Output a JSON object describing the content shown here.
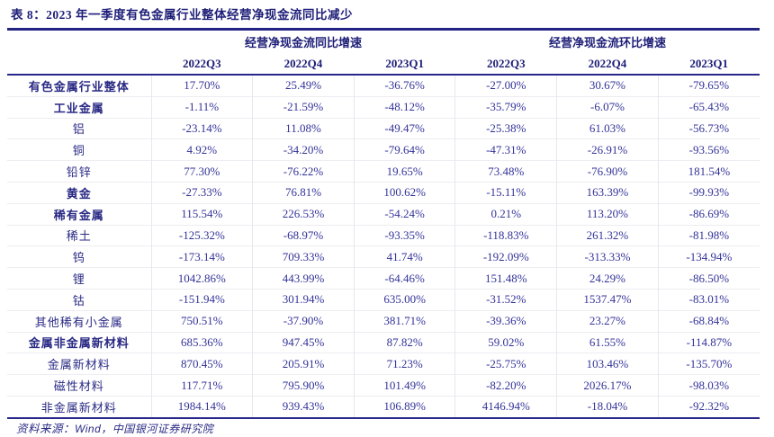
{
  "title": "表 8：2023 年一季度有色金属行业整体经营净现金流同比减少",
  "colors": {
    "accent_navy": "#232384",
    "value_text": "#333399",
    "grid_light": "#ededf2",
    "background": "#ffffff"
  },
  "table": {
    "group_headers": [
      "经营净现金流同比增速",
      "经营净现金流环比增速"
    ],
    "quarter_headers": [
      "2022Q3",
      "2022Q4",
      "2023Q1",
      "2022Q3",
      "2022Q4",
      "2023Q1"
    ],
    "rows": [
      {
        "label": "有色金属行业整体",
        "bold": true,
        "values": [
          "17.70%",
          "25.49%",
          "-36.76%",
          "-27.00%",
          "30.67%",
          "-79.65%"
        ]
      },
      {
        "label": "工业金属",
        "bold": true,
        "values": [
          "-1.11%",
          "-21.59%",
          "-48.12%",
          "-35.79%",
          "-6.07%",
          "-65.43%"
        ]
      },
      {
        "label": "铝",
        "bold": false,
        "values": [
          "-23.14%",
          "11.08%",
          "-49.47%",
          "-25.38%",
          "61.03%",
          "-56.73%"
        ]
      },
      {
        "label": "铜",
        "bold": false,
        "values": [
          "4.92%",
          "-34.20%",
          "-79.64%",
          "-47.31%",
          "-26.91%",
          "-93.56%"
        ]
      },
      {
        "label": "铅锌",
        "bold": false,
        "values": [
          "77.30%",
          "-76.22%",
          "19.65%",
          "73.48%",
          "-76.90%",
          "181.54%"
        ]
      },
      {
        "label": "黄金",
        "bold": true,
        "values": [
          "-27.33%",
          "76.81%",
          "100.62%",
          "-15.11%",
          "163.39%",
          "-99.93%"
        ]
      },
      {
        "label": "稀有金属",
        "bold": true,
        "values": [
          "115.54%",
          "226.53%",
          "-54.24%",
          "0.21%",
          "113.20%",
          "-86.69%"
        ]
      },
      {
        "label": "稀土",
        "bold": false,
        "values": [
          "-125.32%",
          "-68.97%",
          "-93.35%",
          "-118.83%",
          "261.32%",
          "-81.98%"
        ]
      },
      {
        "label": "钨",
        "bold": false,
        "values": [
          "-173.14%",
          "709.33%",
          "41.74%",
          "-192.09%",
          "-313.33%",
          "-134.94%"
        ]
      },
      {
        "label": "锂",
        "bold": false,
        "values": [
          "1042.86%",
          "443.99%",
          "-64.46%",
          "151.48%",
          "24.29%",
          "-86.50%"
        ]
      },
      {
        "label": "钴",
        "bold": false,
        "values": [
          "-151.94%",
          "301.94%",
          "635.00%",
          "-31.52%",
          "1537.47%",
          "-83.01%"
        ]
      },
      {
        "label": "其他稀有小金属",
        "bold": false,
        "values": [
          "750.51%",
          "-37.90%",
          "381.71%",
          "-39.36%",
          "23.27%",
          "-68.84%"
        ]
      },
      {
        "label": "金属非金属新材料",
        "bold": true,
        "values": [
          "685.36%",
          "947.45%",
          "87.82%",
          "59.02%",
          "61.55%",
          "-114.87%"
        ]
      },
      {
        "label": "金属新材料",
        "bold": false,
        "values": [
          "870.45%",
          "205.91%",
          "71.23%",
          "-25.75%",
          "103.46%",
          "-135.70%"
        ]
      },
      {
        "label": "磁性材料",
        "bold": false,
        "values": [
          "117.71%",
          "795.90%",
          "101.49%",
          "-82.20%",
          "2026.17%",
          "-98.03%"
        ]
      },
      {
        "label": "非金属新材料",
        "bold": false,
        "values": [
          "1984.14%",
          "939.43%",
          "106.89%",
          "4146.94%",
          "-18.04%",
          "-92.32%"
        ]
      }
    ]
  },
  "footer": {
    "source_label": "资料来源：",
    "source_value": "Wind，中国银河证券研究院"
  }
}
